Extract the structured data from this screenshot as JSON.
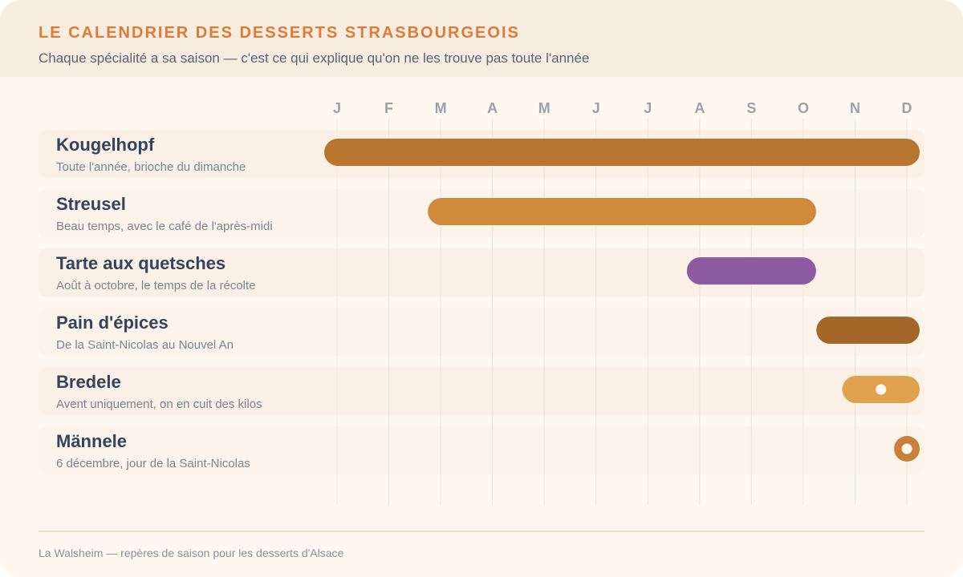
{
  "header": {
    "title": "LE CALENDRIER DES DESSERTS STRASBOURGEOIS",
    "subtitle": "Chaque spécialité a sa saison — c'est ce qui explique qu'on ne les trouve pas toute l'année"
  },
  "footer": "La Walsheim — repères de saison pour les desserts d'Alsace",
  "chart_data": {
    "type": "timeline",
    "months": [
      "J",
      "F",
      "M",
      "A",
      "M",
      "J",
      "J",
      "A",
      "S",
      "O",
      "N",
      "D"
    ],
    "grid": true,
    "rows": [
      {
        "name": "Kougelhopf",
        "note": "Toute l'année, brioche du dimanche",
        "start_month": 1,
        "end_month": 12,
        "shape": "bar",
        "color": "#b7752f"
      },
      {
        "name": "Streusel",
        "note": "Beau temps, avec le café de l'après-midi",
        "start_month": 3,
        "end_month": 10,
        "shape": "bar",
        "color": "#cf8a3b"
      },
      {
        "name": "Tarte aux quetsches",
        "note": "Août à octobre, le temps de la récolte",
        "start_month": 8,
        "end_month": 10,
        "shape": "bar",
        "color": "#8e5ba3"
      },
      {
        "name": "Pain d'épices",
        "note": "De la Saint-Nicolas au Nouvel An",
        "start_month": 10.5,
        "end_month": 12,
        "shape": "bar",
        "color": "#a3672a"
      },
      {
        "name": "Bredele",
        "note": "Avent uniquement, on en cuit des kilos",
        "start_month": 11,
        "end_month": 12,
        "shape": "bar-with-dot",
        "color": "#e1a24f"
      },
      {
        "name": "Männele",
        "note": "6 décembre, jour de la Saint-Nicolas",
        "start_month": 12,
        "end_month": 12,
        "shape": "point",
        "color": "#c8803a"
      }
    ]
  }
}
